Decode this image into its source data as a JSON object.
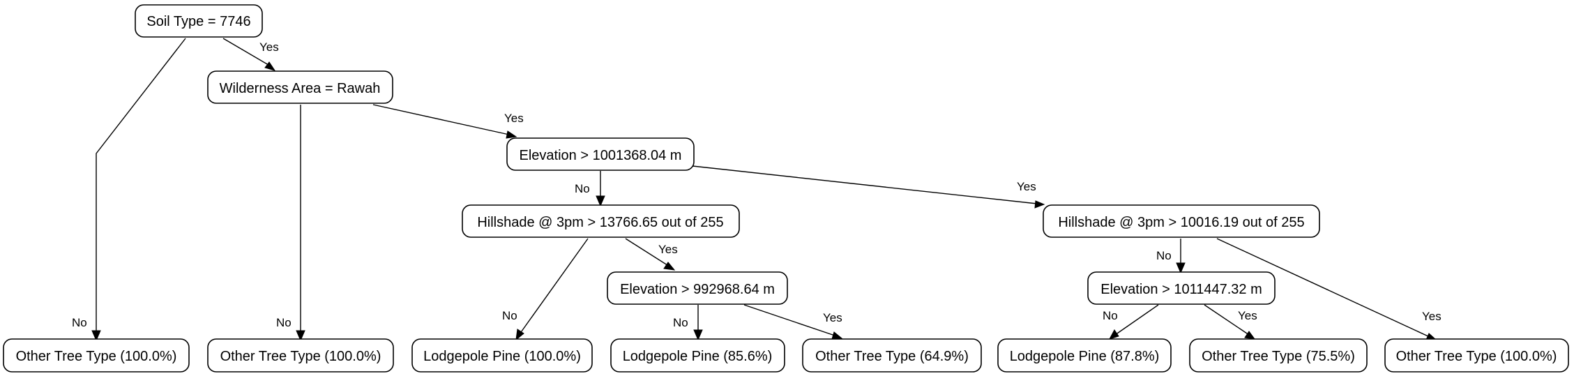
{
  "diagram": {
    "type": "decision-tree",
    "nodes": {
      "root": "Soil Type = 7746",
      "wilderness": "Wilderness Area = Rawah",
      "elev1": "Elevation > 1001368.04 m",
      "hill1": "Hillshade @ 3pm > 13766.65 out of 255",
      "hill2": "Hillshade @ 3pm > 10016.19 out of 255",
      "elev2": "Elevation > 992968.64 m",
      "elev3": "Elevation > 1011447.32 m",
      "leaf1": "Other Tree Type (100.0%)",
      "leaf2": "Other Tree Type (100.0%)",
      "leaf3": "Lodgepole Pine (100.0%)",
      "leaf4": "Lodgepole Pine (85.6%)",
      "leaf5": "Other Tree Type (64.9%)",
      "leaf6": "Lodgepole Pine (87.8%)",
      "leaf7": "Other Tree Type (75.5%)",
      "leaf8": "Other Tree Type (100.0%)"
    },
    "edges": {
      "e1": "Yes",
      "e2": "No",
      "e3": "Yes",
      "e4": "No",
      "e5": "No",
      "e6": "Yes",
      "e7": "No",
      "e8": "Yes",
      "e9": "No",
      "e10": "Yes",
      "e11": "No",
      "e12": "Yes",
      "e13": "No",
      "e14": "Yes"
    }
  }
}
